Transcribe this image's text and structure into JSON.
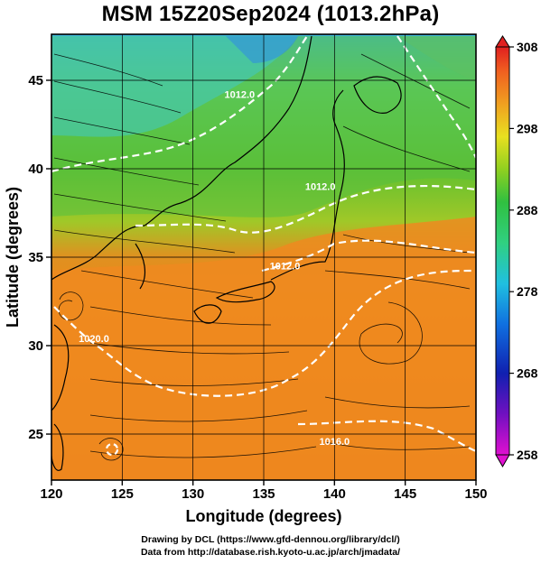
{
  "title": "MSM 15Z20Sep2024 (1013.2hPa)",
  "axes": {
    "xlabel": "Longitude (degrees)",
    "ylabel": "Latitude  (degrees)",
    "x_ticks": [
      "120",
      "125",
      "130",
      "135",
      "140",
      "145",
      "150"
    ],
    "y_ticks": [
      "25",
      "30",
      "35",
      "40",
      "45"
    ],
    "xlim": [
      120,
      150
    ],
    "ylim": [
      22.4,
      47.6
    ]
  },
  "colorbar": {
    "max_label": "308",
    "ticks": [
      "308",
      "298",
      "288",
      "278",
      "268",
      "258"
    ],
    "range": [
      258,
      308
    ]
  },
  "isobar_labels": [
    {
      "text": "1016.0",
      "lon": 140.0,
      "lat": 24.4
    },
    {
      "text": "1012.0",
      "lon": 139.0,
      "lat": 38.8
    },
    {
      "text": "1012.0",
      "lon": 136.5,
      "lat": 34.3
    },
    {
      "text": "1020.0",
      "lon": 123.0,
      "lat": 30.2
    },
    {
      "text": "1012.0",
      "lon": 133.3,
      "lat": 44.0
    }
  ],
  "footer": {
    "line1": "Drawing by DCL (https://www.gfd-dennou.org/library/dcl/)",
    "line2": "Data from http://database.rish.kyoto-u.ac.jp/arch/jmadata/"
  },
  "chart_data": {
    "type": "heatmap",
    "title": "MSM 15Z20Sep2024 (1013.2hPa)",
    "xlabel": "Longitude (degrees)",
    "ylabel": "Latitude  (degrees)",
    "xlim": [
      120,
      150
    ],
    "ylim": [
      22.4,
      47.6
    ],
    "colorbar_range": [
      258,
      308
    ],
    "fields": [
      "temperature",
      "wind streamlines",
      "isobars (hPa)"
    ],
    "cyclones": [
      {
        "lon": 121.5,
        "lat": 32.7
      },
      {
        "lon": 124.4,
        "lat": 24.8
      },
      {
        "lon": 143.5,
        "lat": 30.5
      }
    ]
  }
}
